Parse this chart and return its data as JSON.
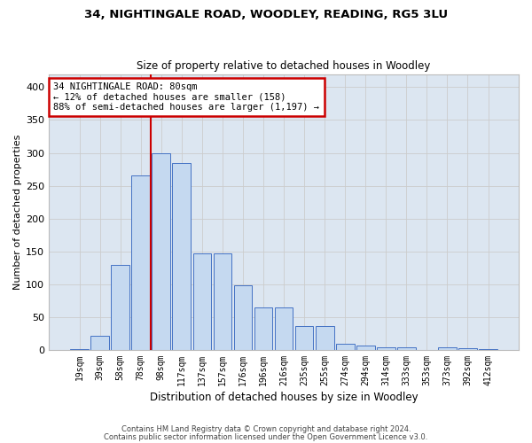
{
  "title_line1": "34, NIGHTINGALE ROAD, WOODLEY, READING, RG5 3LU",
  "title_line2": "Size of property relative to detached houses in Woodley",
  "xlabel": "Distribution of detached houses by size in Woodley",
  "ylabel": "Number of detached properties",
  "categories": [
    "19sqm",
    "39sqm",
    "58sqm",
    "78sqm",
    "98sqm",
    "117sqm",
    "137sqm",
    "157sqm",
    "176sqm",
    "196sqm",
    "216sqm",
    "235sqm",
    "255sqm",
    "274sqm",
    "294sqm",
    "314sqm",
    "333sqm",
    "353sqm",
    "373sqm",
    "392sqm",
    "412sqm"
  ],
  "values": [
    1,
    22,
    130,
    265,
    300,
    285,
    147,
    147,
    98,
    65,
    65,
    37,
    37,
    9,
    6,
    4,
    4,
    0,
    4,
    3,
    1
  ],
  "bar_color": "#c5d9f0",
  "bar_edge_color": "#4472c4",
  "vline_color": "#cc0000",
  "vline_x_index": 3.5,
  "annotation_text": "34 NIGHTINGALE ROAD: 80sqm\n← 12% of detached houses are smaller (158)\n88% of semi-detached houses are larger (1,197) →",
  "annotation_box_color": "#ffffff",
  "annotation_border_color": "#cc0000",
  "ylim": [
    0,
    420
  ],
  "yticks": [
    0,
    50,
    100,
    150,
    200,
    250,
    300,
    350,
    400
  ],
  "grid_color": "#cccccc",
  "background_color": "#dce6f1",
  "footer_line1": "Contains HM Land Registry data © Crown copyright and database right 2024.",
  "footer_line2": "Contains public sector information licensed under the Open Government Licence v3.0."
}
